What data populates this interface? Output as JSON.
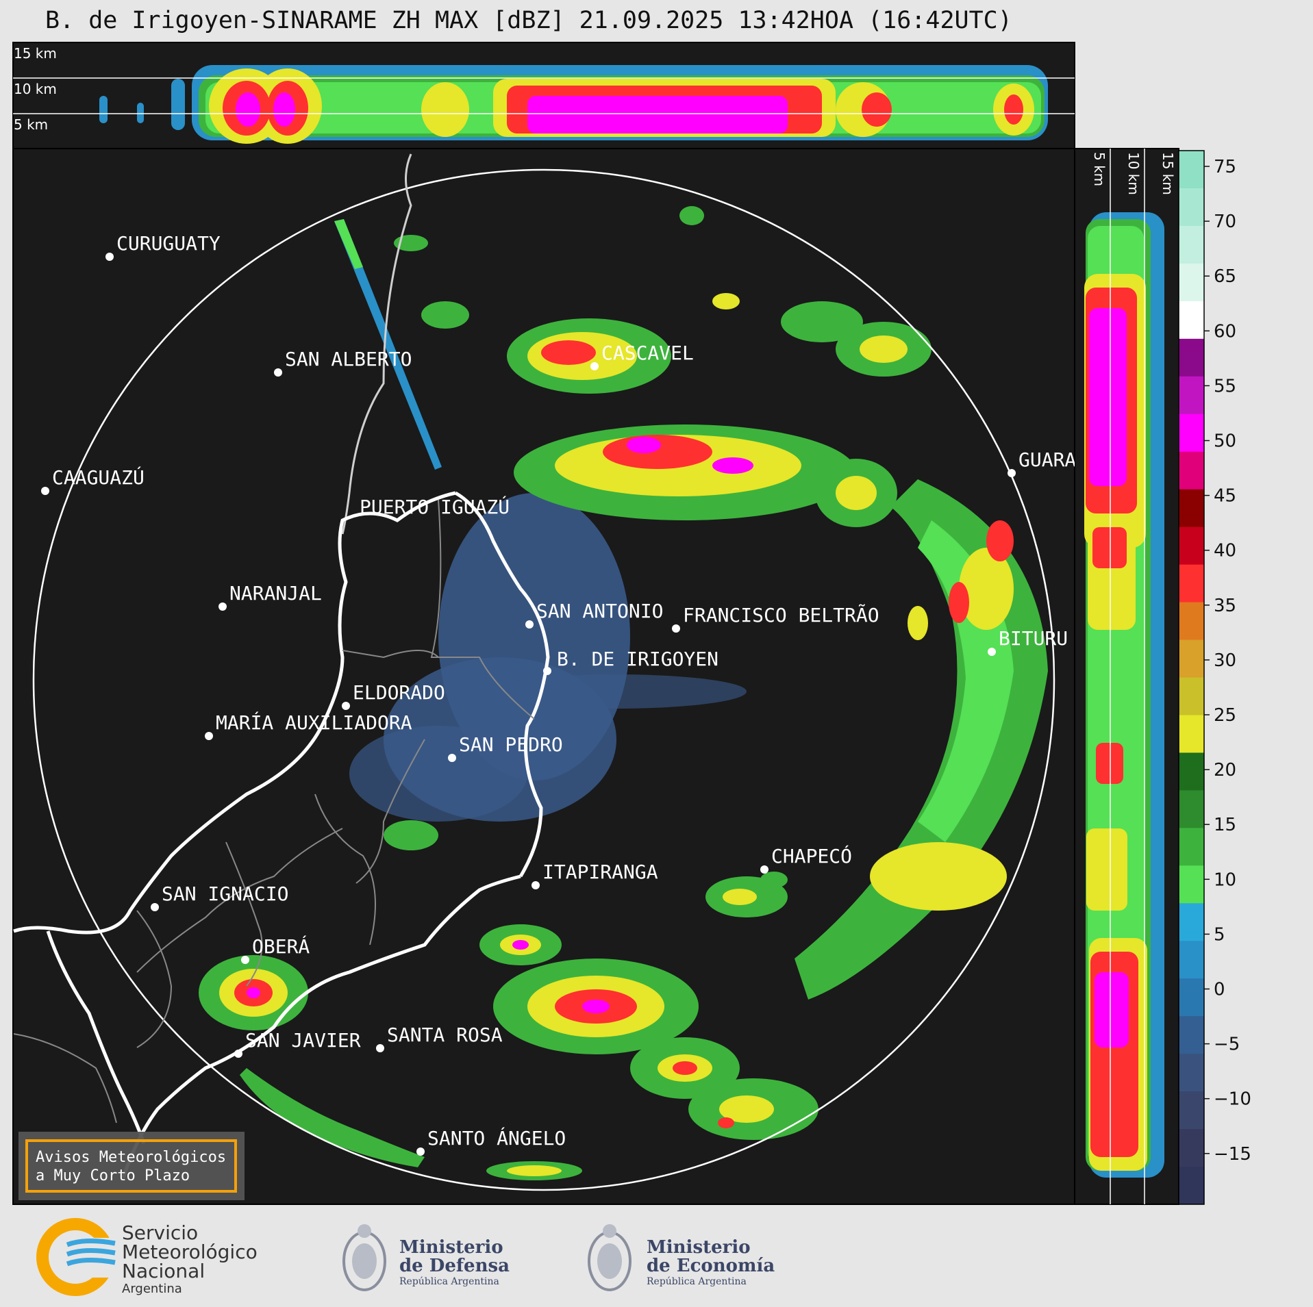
{
  "title": "B. de Irigoyen-SINARAME ZH MAX [dBZ] 21.09.2025 13:42HOA (16:42UTC)",
  "cities": [
    {
      "name": "CURUGUATY"
    },
    {
      "name": "SAN ALBERTO"
    },
    {
      "name": "CAAGUAZÚ"
    },
    {
      "name": "CASCAVEL"
    },
    {
      "name": "GUARA"
    },
    {
      "name": "PUERTO IGUAZÚ"
    },
    {
      "name": "NARANJAL"
    },
    {
      "name": "SAN ANTONIO"
    },
    {
      "name": "FRANCISCO BELTRÃO"
    },
    {
      "name": "B. DE IRIGOYEN"
    },
    {
      "name": "BITURU"
    },
    {
      "name": "ELDORADO"
    },
    {
      "name": "MARÍA AUXILIADORA"
    },
    {
      "name": "SAN PEDRO"
    },
    {
      "name": "CHAPECÓ"
    },
    {
      "name": "ITAPIRANGA"
    },
    {
      "name": "SAN IGNACIO"
    },
    {
      "name": "OBERÁ"
    },
    {
      "name": "SAN JAVIER"
    },
    {
      "name": "SANTA ROSA"
    },
    {
      "name": "SANTO ÁNGELO"
    }
  ],
  "height_labels": [
    "15 km",
    "10 km",
    "5 km"
  ],
  "colorbar": {
    "ticks": [
      "75",
      "70",
      "65",
      "60",
      "55",
      "50",
      "45",
      "40",
      "35",
      "30",
      "25",
      "20",
      "15",
      "10",
      "5",
      "0",
      "−5",
      "−10",
      "−15"
    ],
    "colors_top_to_bottom": [
      "#8fe0c4",
      "#a8e8d2",
      "#c2efdf",
      "#dcf6ec",
      "#ffffff",
      "#8b0a8b",
      "#c215c2",
      "#ff00ff",
      "#e0007a",
      "#8b0000",
      "#c8001c",
      "#ff3030",
      "#e07a1e",
      "#d9a02a",
      "#c9c02a",
      "#e6e62a",
      "#1e6e1e",
      "#2e8b2e",
      "#3db33d",
      "#55e055",
      "#29a9d9",
      "#2a90c8",
      "#2a78b0",
      "#345f92",
      "#3a527e",
      "#3a466c",
      "#363b5e",
      "#30355a"
    ]
  },
  "warning_box": {
    "line1": "Avisos Meteorológicos",
    "line2": "a Muy Corto Plazo"
  },
  "footer": {
    "smn": {
      "line1": "Servicio",
      "line2": "Meteorológico",
      "line3": "Nacional",
      "line4": "Argentina"
    },
    "defensa": {
      "line1": "Ministerio",
      "line2": "de Defensa",
      "line3": "República Argentina"
    },
    "economia": {
      "line1": "Ministerio",
      "line2": "de Economía",
      "line3": "República Argentina"
    }
  }
}
